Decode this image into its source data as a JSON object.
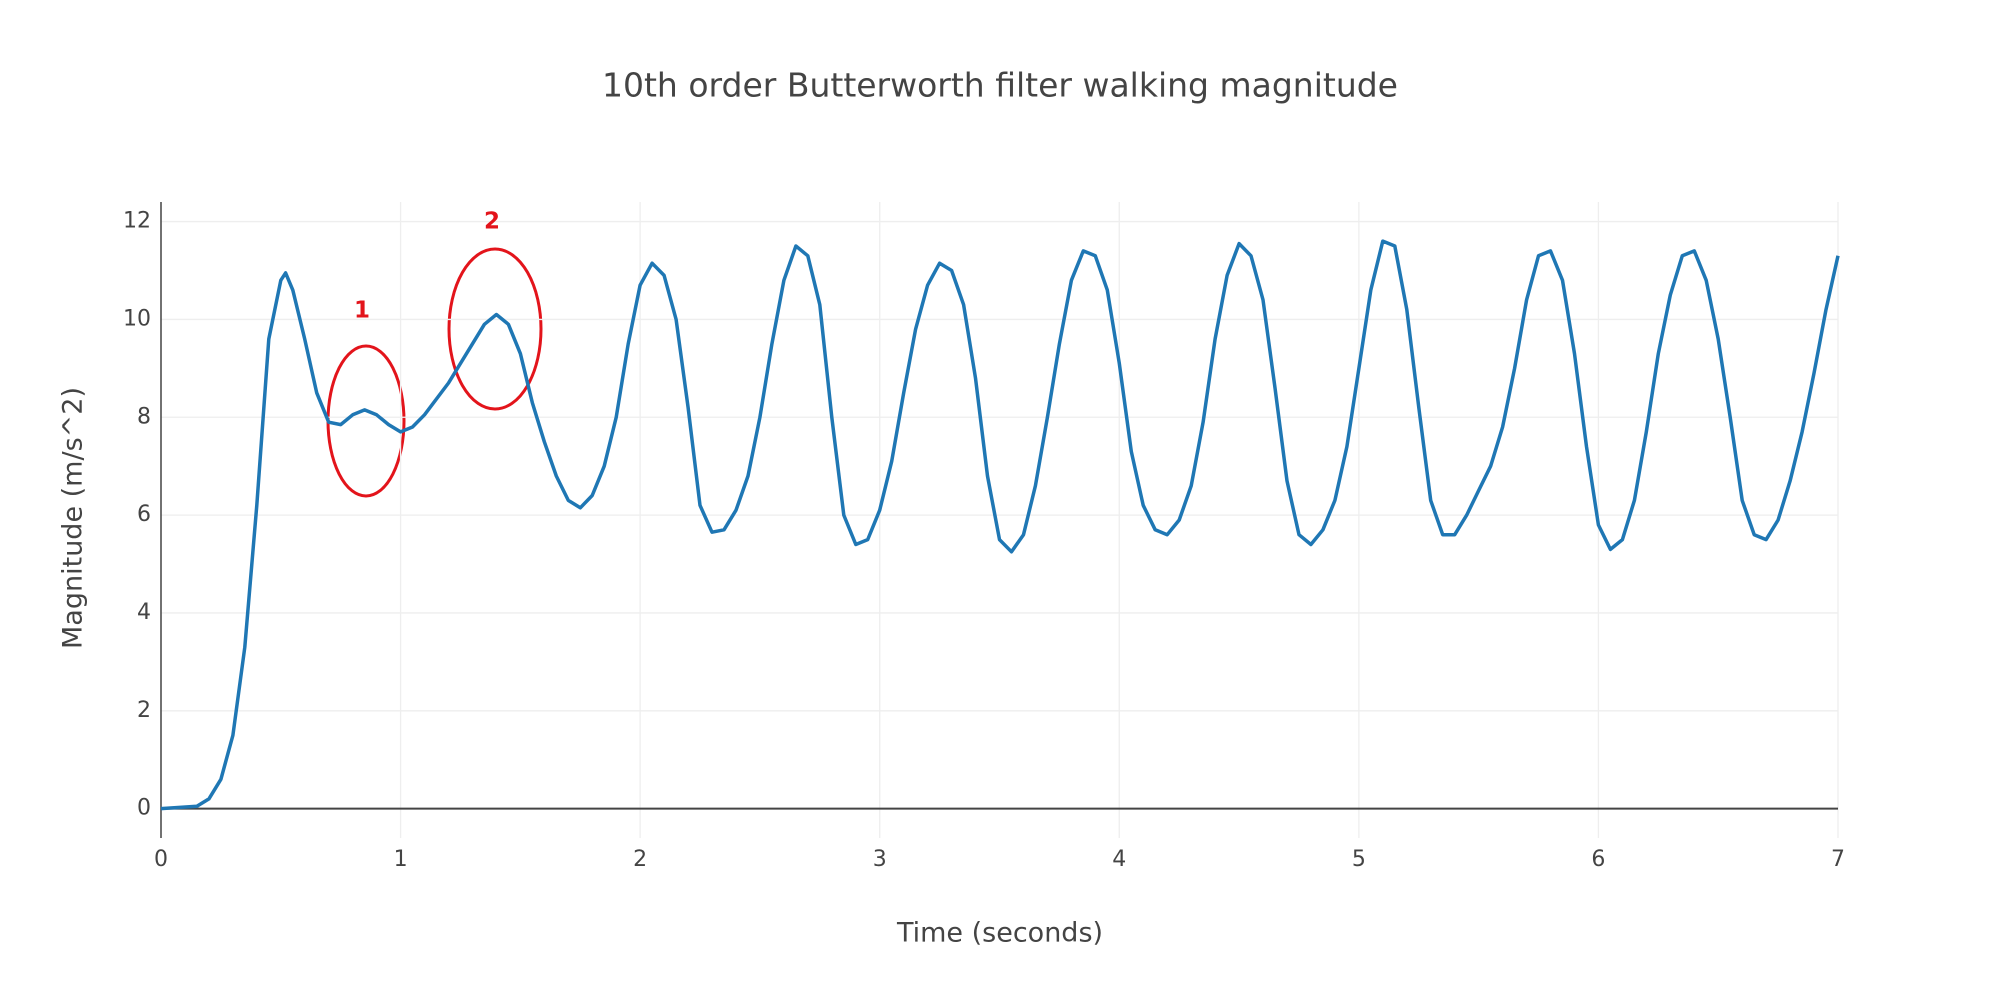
{
  "chart_data": {
    "type": "line",
    "title": "10th order Butterworth filter walking magnitude",
    "x_label": "Time (seconds)",
    "y_label": "Magnitude (m/s^2)",
    "annotations": [
      "1",
      "2"
    ],
    "xlim": [
      0,
      7
    ],
    "xticks": [
      0,
      1,
      2,
      3,
      4,
      5,
      6,
      7
    ],
    "ylim": [
      -0.6,
      12.4
    ],
    "yticks": [
      0,
      2,
      4,
      6,
      8,
      10,
      12
    ],
    "grid": true,
    "series": [
      {
        "color": "#1f77b4",
        "x": [
          0,
          0.15,
          0.2,
          0.25,
          0.3,
          0.35,
          0.4,
          0.45,
          0.5,
          0.52,
          0.55,
          0.6,
          0.65,
          0.7,
          0.75,
          0.8,
          0.85,
          0.9,
          0.95,
          1.0,
          1.05,
          1.1,
          1.2,
          1.3,
          1.35,
          1.4,
          1.45,
          1.5,
          1.55,
          1.6,
          1.65,
          1.7,
          1.75,
          1.8,
          1.85,
          1.9,
          1.95,
          2.0,
          2.05,
          2.1,
          2.15,
          2.2,
          2.25,
          2.3,
          2.35,
          2.4,
          2.45,
          2.5,
          2.55,
          2.6,
          2.65,
          2.7,
          2.75,
          2.8,
          2.85,
          2.9,
          2.95,
          3.0,
          3.05,
          3.1,
          3.15,
          3.2,
          3.25,
          3.3,
          3.35,
          3.4,
          3.45,
          3.5,
          3.55,
          3.6,
          3.65,
          3.7,
          3.75,
          3.8,
          3.85,
          3.9,
          3.95,
          4.0,
          4.05,
          4.1,
          4.15,
          4.2,
          4.25,
          4.3,
          4.35,
          4.4,
          4.45,
          4.5,
          4.55,
          4.6,
          4.65,
          4.7,
          4.75,
          4.8,
          4.85,
          4.9,
          4.95,
          5.0,
          5.05,
          5.1,
          5.15,
          5.2,
          5.25,
          5.3,
          5.35,
          5.4,
          5.45,
          5.5,
          5.55,
          5.6,
          5.65,
          5.7,
          5.75,
          5.8,
          5.85,
          5.9,
          5.95,
          6.0,
          6.05,
          6.1,
          6.15,
          6.2,
          6.25,
          6.3,
          6.35,
          6.4,
          6.45,
          6.5,
          6.55,
          6.6,
          6.65,
          6.7,
          6.75,
          6.8,
          6.85,
          6.9,
          6.95,
          7.0
        ],
        "values": [
          0,
          0.05,
          0.2,
          0.6,
          1.5,
          3.3,
          6.2,
          9.6,
          10.8,
          10.95,
          10.6,
          9.6,
          8.5,
          7.9,
          7.85,
          8.05,
          8.15,
          8.05,
          7.85,
          7.7,
          7.8,
          8.05,
          8.7,
          9.5,
          9.9,
          10.1,
          9.9,
          9.3,
          8.3,
          7.5,
          6.8,
          6.3,
          6.15,
          6.4,
          7.0,
          8.0,
          9.5,
          10.7,
          11.15,
          10.9,
          10.0,
          8.2,
          6.2,
          5.65,
          5.7,
          6.1,
          6.8,
          8.0,
          9.5,
          10.8,
          11.5,
          11.3,
          10.3,
          8.0,
          6.0,
          5.4,
          5.5,
          6.1,
          7.1,
          8.5,
          9.8,
          10.7,
          11.15,
          11.0,
          10.3,
          8.8,
          6.8,
          5.5,
          5.25,
          5.6,
          6.6,
          8.0,
          9.5,
          10.8,
          11.4,
          11.3,
          10.6,
          9.1,
          7.3,
          6.2,
          5.7,
          5.6,
          5.9,
          6.6,
          7.9,
          9.6,
          10.9,
          11.55,
          11.3,
          10.4,
          8.6,
          6.7,
          5.6,
          5.4,
          5.7,
          6.3,
          7.4,
          9.0,
          10.6,
          11.6,
          11.5,
          10.2,
          8.2,
          6.3,
          5.6,
          5.6,
          6.0,
          6.5,
          7.0,
          7.8,
          9.0,
          10.4,
          11.3,
          11.4,
          10.8,
          9.3,
          7.4,
          5.8,
          5.3,
          5.5,
          6.3,
          7.7,
          9.3,
          10.5,
          11.3,
          11.4,
          10.8,
          9.6,
          8.0,
          6.3,
          5.6,
          5.5,
          5.9,
          6.7,
          7.7,
          8.9,
          10.2,
          11.3
        ]
      }
    ]
  }
}
